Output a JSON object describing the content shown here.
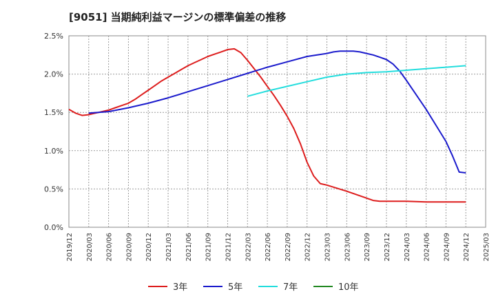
{
  "chart_data": {
    "type": "line",
    "title": "[9051]  当期純利益マージンの標準偏差の推移",
    "xlabel": "",
    "ylabel": "",
    "ylim": [
      0,
      2.5
    ],
    "y_ticks": [
      "0.0%",
      "0.5%",
      "1.0%",
      "1.5%",
      "2.0%",
      "2.5%"
    ],
    "x_ticks": [
      "2019/12",
      "2020/03",
      "2020/06",
      "2020/09",
      "2020/12",
      "2021/03",
      "2021/06",
      "2021/09",
      "2021/12",
      "2022/03",
      "2022/06",
      "2022/09",
      "2022/12",
      "2023/03",
      "2023/06",
      "2023/09",
      "2023/12",
      "2024/03",
      "2024/06",
      "2024/09",
      "2024/12",
      "2025/03"
    ],
    "grid": true,
    "legend_position": "bottom",
    "series": [
      {
        "name": "3年",
        "color": "#dd1c1c",
        "x": [
          "2019/12",
          "2020/01",
          "2020/02",
          "2020/03",
          "2020/04",
          "2020/05",
          "2020/06",
          "2020/07",
          "2020/08",
          "2020/09",
          "2020/10",
          "2020/11",
          "2020/12",
          "2021/01",
          "2021/02",
          "2021/03",
          "2021/04",
          "2021/05",
          "2021/06",
          "2021/07",
          "2021/08",
          "2021/09",
          "2021/10",
          "2021/11",
          "2021/12",
          "2022/01",
          "2022/02",
          "2022/03",
          "2022/04",
          "2022/05",
          "2022/06",
          "2022/07",
          "2022/08",
          "2022/09",
          "2022/10",
          "2022/11",
          "2022/12",
          "2023/01",
          "2023/02",
          "2023/03",
          "2023/06",
          "2023/09",
          "2023/10",
          "2023/11",
          "2023/12",
          "2024/03",
          "2024/06",
          "2024/09",
          "2024/12"
        ],
        "y": [
          1.54,
          1.49,
          1.46,
          1.47,
          1.49,
          1.51,
          1.53,
          1.56,
          1.59,
          1.62,
          1.67,
          1.73,
          1.79,
          1.85,
          1.91,
          1.96,
          2.01,
          2.06,
          2.11,
          2.15,
          2.19,
          2.23,
          2.26,
          2.29,
          2.32,
          2.33,
          2.28,
          2.18,
          2.07,
          1.96,
          1.84,
          1.72,
          1.59,
          1.45,
          1.29,
          1.09,
          0.85,
          0.67,
          0.57,
          0.55,
          0.47,
          0.38,
          0.35,
          0.34,
          0.34,
          0.34,
          0.33,
          0.33,
          0.33
        ]
      },
      {
        "name": "5年",
        "color": "#1a1acc",
        "x": [
          "2020/03",
          "2020/06",
          "2020/09",
          "2020/12",
          "2021/03",
          "2021/06",
          "2021/09",
          "2021/12",
          "2022/03",
          "2022/06",
          "2022/09",
          "2022/12",
          "2023/03",
          "2023/04",
          "2023/05",
          "2023/06",
          "2023/07",
          "2023/08",
          "2023/09",
          "2023/10",
          "2023/11",
          "2023/12",
          "2024/01",
          "2024/02",
          "2024/03",
          "2024/06",
          "2024/09",
          "2024/10",
          "2024/11",
          "2024/12"
        ],
        "y": [
          1.49,
          1.51,
          1.56,
          1.62,
          1.69,
          1.77,
          1.85,
          1.93,
          2.01,
          2.09,
          2.16,
          2.23,
          2.27,
          2.29,
          2.3,
          2.3,
          2.3,
          2.29,
          2.27,
          2.25,
          2.22,
          2.19,
          2.13,
          2.04,
          1.92,
          1.54,
          1.12,
          0.93,
          0.72,
          0.71
        ]
      },
      {
        "name": "7年",
        "color": "#22dddd",
        "x": [
          "2022/03",
          "2022/06",
          "2022/09",
          "2022/12",
          "2023/03",
          "2023/06",
          "2023/09",
          "2023/12",
          "2024/03",
          "2024/06",
          "2024/09",
          "2024/12"
        ],
        "y": [
          1.71,
          1.78,
          1.84,
          1.9,
          1.96,
          2.0,
          2.02,
          2.03,
          2.05,
          2.07,
          2.09,
          2.11
        ]
      },
      {
        "name": "10年",
        "color": "#228822",
        "x": [],
        "y": []
      }
    ]
  }
}
